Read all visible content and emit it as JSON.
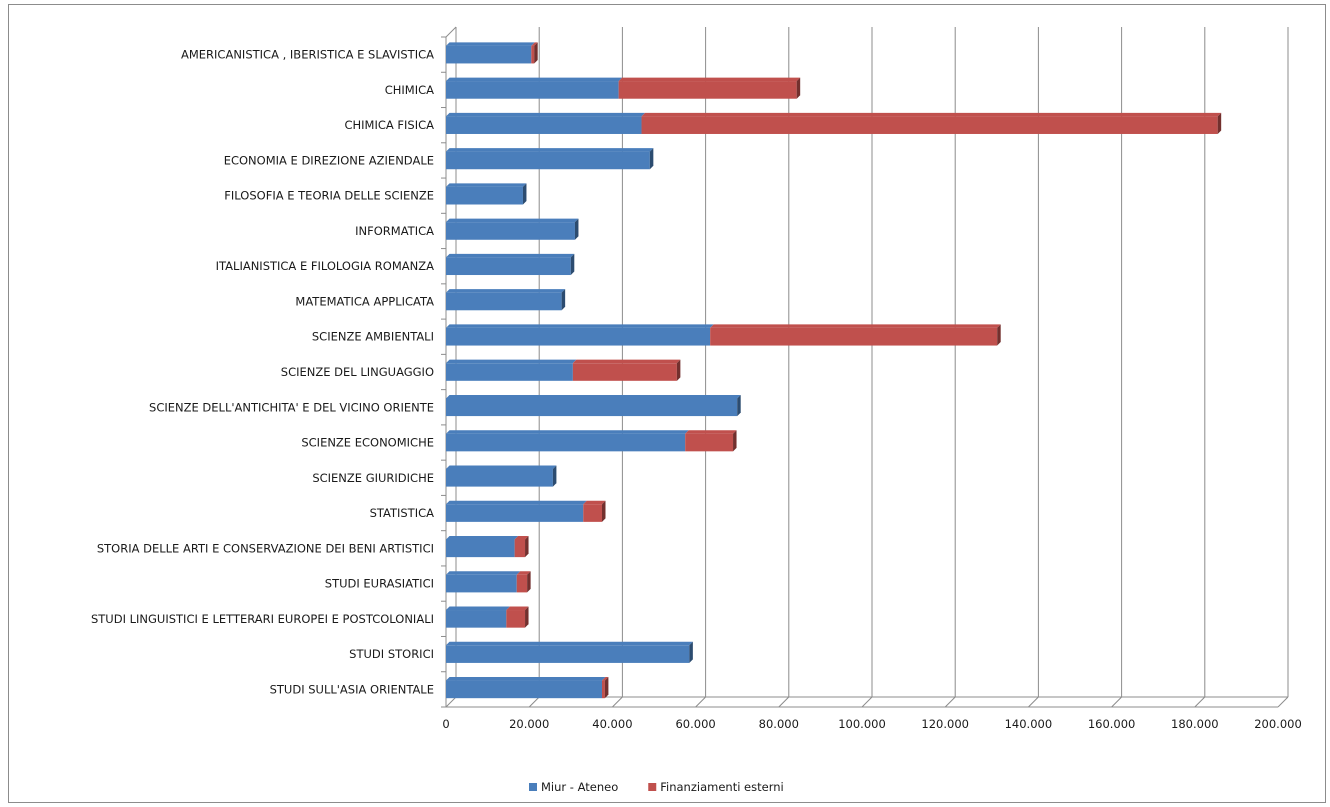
{
  "chart_data": {
    "type": "bar",
    "orientation": "horizontal",
    "stacked": true,
    "style": "3d",
    "categories": [
      "AMERICANISTICA , IBERISTICA E SLAVISTICA",
      "CHIMICA",
      "CHIMICA FISICA",
      "ECONOMIA E DIREZIONE AZIENDALE",
      "FILOSOFIA E TEORIA DELLE SCIENZE",
      "INFORMATICA",
      "ITALIANISTICA E FILOLOGIA ROMANZA",
      "MATEMATICA APPLICATA",
      "SCIENZE AMBIENTALI",
      "SCIENZE DEL LINGUAGGIO",
      "SCIENZE DELL'ANTICHITA' E DEL VICINO ORIENTE",
      "SCIENZE ECONOMICHE",
      "SCIENZE GIURIDICHE",
      "STATISTICA",
      "STORIA DELLE ARTI E CONSERVAZIONE DEI BENI ARTISTICI",
      "STUDI EURASIATICI",
      "STUDI LINGUISTICI E LETTERARI EUROPEI E POSTCOLONIALI",
      "STUDI STORICI",
      "STUDI SULL'ASIA ORIENTALE"
    ],
    "series": [
      {
        "name": "Miur - Ateneo",
        "color": "#4a7ebb",
        "values": [
          20500,
          41500,
          47000,
          49000,
          18500,
          31000,
          30000,
          27800,
          63500,
          30500,
          70000,
          57500,
          25700,
          33000,
          16500,
          17000,
          14500,
          58500,
          37500
        ]
      },
      {
        "name": "Finanziamenti esterni",
        "color": "#c0504d",
        "values": [
          700,
          42800,
          138500,
          0,
          0,
          0,
          0,
          0,
          69000,
          25000,
          0,
          11500,
          0,
          4500,
          2500,
          2500,
          4500,
          0,
          700
        ]
      }
    ],
    "xlim": [
      0,
      200000
    ],
    "xticks": [
      0,
      20000,
      40000,
      60000,
      80000,
      100000,
      120000,
      140000,
      160000,
      180000,
      200000
    ],
    "xtick_labels": [
      "0",
      "20.000",
      "40.000",
      "60.000",
      "80.000",
      "100.000",
      "120.000",
      "140.000",
      "160.000",
      "180.000",
      "200.000"
    ],
    "grid": true,
    "legend": "bottom",
    "title": "",
    "xlabel": "",
    "ylabel": ""
  }
}
